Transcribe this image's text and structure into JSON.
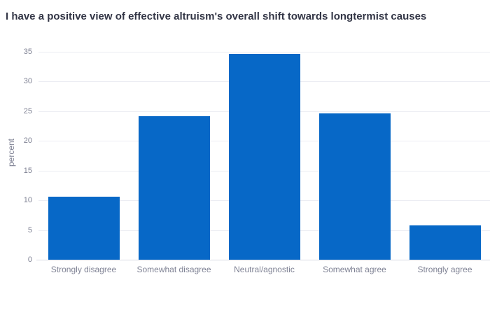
{
  "chart_data": {
    "type": "bar",
    "title": "I have a positive view of effective altruism's overall shift towards longtermist causes",
    "xlabel": "",
    "ylabel": "percent",
    "categories": [
      "Strongly disagree",
      "Somewhat disagree",
      "Neutral/agnostic",
      "Somewhat agree",
      "Strongly agree"
    ],
    "values": [
      10.6,
      24.2,
      34.7,
      24.6,
      5.8
    ],
    "yticks": [
      0,
      5,
      10,
      15,
      20,
      25,
      30,
      35
    ],
    "ylim": [
      0,
      35
    ],
    "grid": true,
    "legend_position": "none",
    "colors": {
      "bar": "#0768c7",
      "title_text": "#333646",
      "axis_text": "#7f8294",
      "gridline": "#ecedf3",
      "axis_line": "#d9dbe4",
      "background": "#ffffff"
    }
  }
}
